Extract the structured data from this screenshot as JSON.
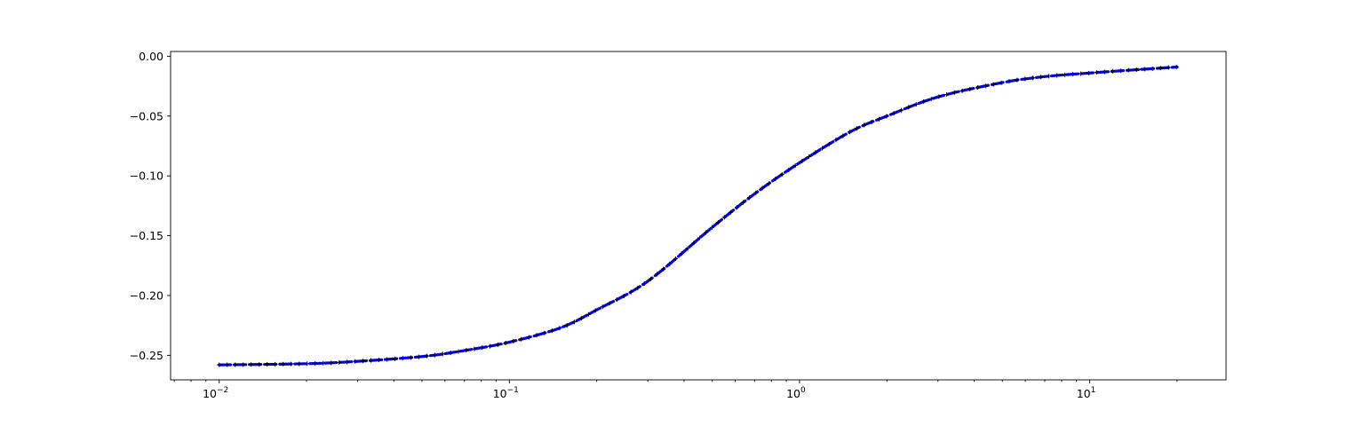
{
  "chart_data": {
    "type": "line",
    "title": "",
    "xlabel": "",
    "ylabel": "",
    "x_scale": "log",
    "xlim": [
      0.0068,
      29.5
    ],
    "ylim": [
      -0.2705,
      0.004
    ],
    "grid": false,
    "legend": "none",
    "series": [
      {
        "color": "#0000ff",
        "line_style": "dashed",
        "marker": "+",
        "x": [
          0.01,
          0.02,
          0.03,
          0.05,
          0.07,
          0.1,
          0.15,
          0.2,
          0.3,
          0.5,
          0.7,
          1.0,
          1.5,
          2.0,
          3.0,
          5.0,
          7.0,
          10.0,
          15.0,
          20.0
        ],
        "y": [
          -0.258,
          -0.257,
          -0.255,
          -0.251,
          -0.246,
          -0.239,
          -0.227,
          -0.212,
          -0.188,
          -0.143,
          -0.115,
          -0.089,
          -0.063,
          -0.05,
          -0.034,
          -0.022,
          -0.017,
          -0.014,
          -0.011,
          -0.009
        ]
      }
    ],
    "x_ticks": [
      {
        "value": 0.01,
        "base": "10",
        "exp": "−2"
      },
      {
        "value": 0.1,
        "base": "10",
        "exp": "−1"
      },
      {
        "value": 1,
        "base": "10",
        "exp": "0"
      },
      {
        "value": 10,
        "base": "10",
        "exp": "1"
      }
    ],
    "y_ticks": [
      {
        "value": 0.0,
        "label": "0.00"
      },
      {
        "value": -0.05,
        "label": "−0.05"
      },
      {
        "value": -0.1,
        "label": "−0.10"
      },
      {
        "value": -0.15,
        "label": "−0.15"
      },
      {
        "value": -0.2,
        "label": "−0.20"
      },
      {
        "value": -0.25,
        "label": "−0.25"
      }
    ]
  }
}
